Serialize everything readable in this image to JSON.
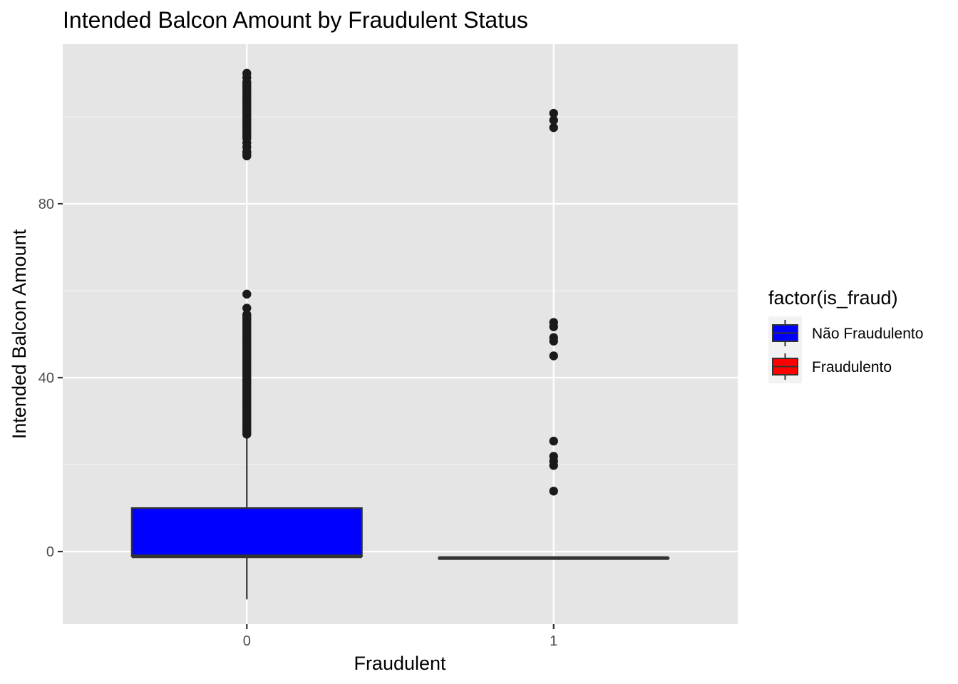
{
  "chart_data": {
    "type": "box",
    "title": "Intended Balcon Amount by Fraudulent Status",
    "xlabel": "Fraudulent",
    "ylabel": "Intended Balcon Amount",
    "categories": [
      "0",
      "1"
    ],
    "ylim": [
      -16.7,
      116.7
    ],
    "y_ticks": [
      0,
      40,
      80
    ],
    "y_tick_labels": [
      "0",
      "40",
      "80"
    ],
    "grid": true,
    "legend": {
      "title": "factor(is_fraud)",
      "placement": "right",
      "entries": [
        {
          "label": "Não Fraudulento",
          "color": "#0000FF"
        },
        {
          "label": "Fraudulento",
          "color": "#FF0000"
        }
      ]
    },
    "boxes": [
      {
        "category": "0",
        "fill": "#0000FF",
        "whisker_low": -11,
        "q1": -1.1,
        "median": -1.1,
        "q3": 10,
        "whisker_high": 26,
        "outliers": [
          27,
          27.5,
          28,
          28.5,
          29,
          29.5,
          30,
          30.5,
          31,
          31.5,
          32,
          32.5,
          33,
          33.5,
          34,
          34.5,
          35,
          35.5,
          36,
          36.5,
          37,
          37.5,
          38,
          38.5,
          39,
          39.5,
          40,
          40.5,
          41,
          41.5,
          42,
          42.5,
          43,
          43.5,
          44,
          44.5,
          45,
          45.5,
          46,
          46.5,
          47,
          47.5,
          48,
          48.5,
          49,
          49.5,
          50,
          50.5,
          51,
          51.5,
          52,
          52.5,
          53,
          53.5,
          54,
          54.5,
          56,
          59.2,
          91,
          91.5,
          92,
          93,
          94,
          95,
          95.5,
          96,
          96.5,
          97,
          97.5,
          98,
          98.5,
          99,
          99.5,
          100,
          100.5,
          101,
          101.5,
          102,
          102.5,
          103,
          103.5,
          104,
          104.5,
          105,
          105.5,
          106,
          106.5,
          107,
          107.5,
          108,
          109,
          110
        ]
      },
      {
        "category": "1",
        "fill": "#FF0000",
        "whisker_low": -1.5,
        "q1": -1.5,
        "median": -1.5,
        "q3": -1.5,
        "whisker_high": -1.5,
        "outliers": [
          13.9,
          19.8,
          20.8,
          21.9,
          25.4,
          45,
          48.4,
          49.2,
          51.7,
          52.7,
          97.5,
          99.2,
          100.8
        ]
      }
    ]
  }
}
